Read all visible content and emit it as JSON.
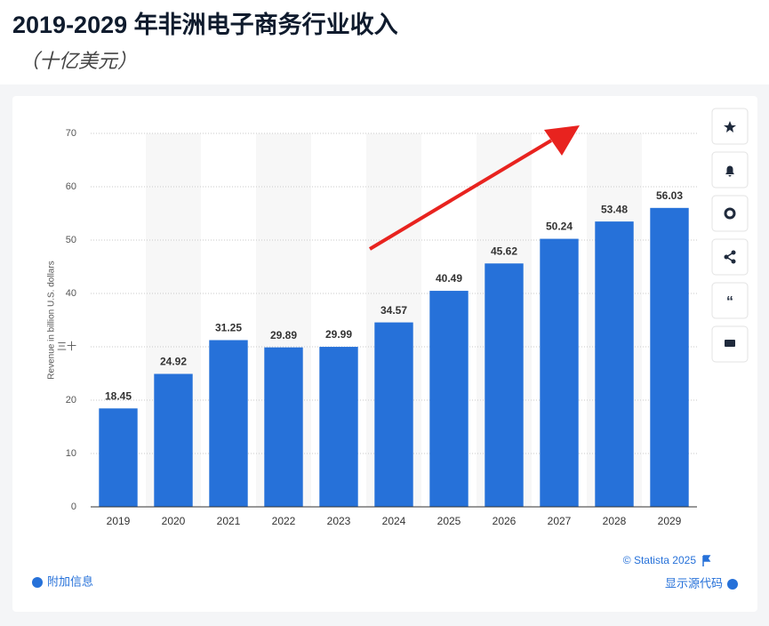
{
  "chart_data": {
    "type": "bar",
    "title": "2019-2029 年非洲电子商务行业收入",
    "subtitle": "（十亿美元）",
    "y_label": "Revenue in billion U.S. dollars",
    "categories": [
      "2019",
      "2020",
      "2021",
      "2022",
      "2023",
      "2024",
      "2025",
      "2026",
      "2027",
      "2028",
      "2029"
    ],
    "values": [
      18.45,
      24.92,
      31.25,
      29.89,
      29.99,
      34.57,
      40.49,
      45.62,
      50.24,
      53.48,
      56.03
    ],
    "color": "#2671d9",
    "ylim": [
      0,
      70
    ],
    "yticks": [
      0,
      10,
      20,
      {
        "value": 30,
        "label": "三十"
      },
      40,
      50,
      60,
      70
    ],
    "grid": true
  },
  "ui": {
    "credit": "© Statista 2025",
    "additional_info": "附加信息",
    "show_source": "显示源代码"
  }
}
